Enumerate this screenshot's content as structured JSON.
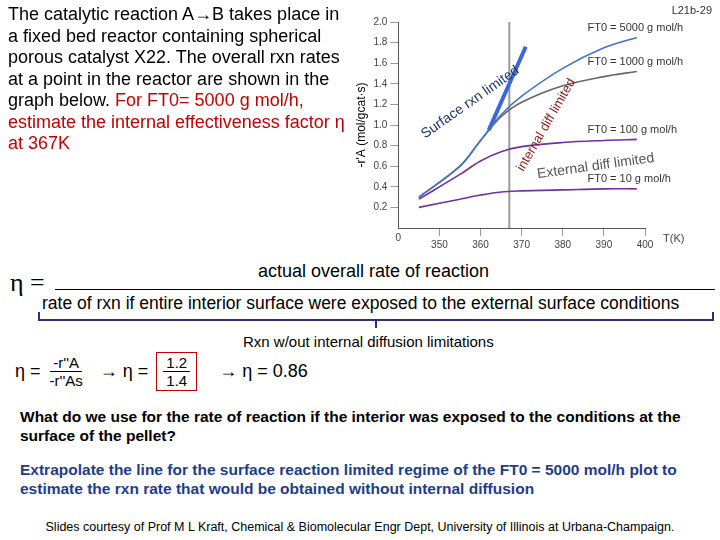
{
  "slide": {
    "page_id": "L21b-29",
    "intro": "The catalytic reaction A→B takes place in a fixed bed reactor containing spherical porous catalyst X22. The overall rxn rates at a point in the reactor are shown in the graph below.",
    "task": "For FT0= 5000 g mol/h, estimate the internal effectiveness factor η at 367K",
    "eta_symbol": "η =",
    "numerator": "actual overall rate of reaction",
    "denominator": "rate of rxn if entire interior surface were exposed to the external surface conditions",
    "bracket_label": "Rxn w/out internal diffusion limitations",
    "formula": {
      "lhs": "η =",
      "num": "-r''A",
      "den": "-r''As",
      "arrow1": "→ η =",
      "value_num": 1.2,
      "value_den": 1.4,
      "arrow2": "→ η =",
      "result": 0.86
    },
    "question": "What do we use for the rate of reaction if the interior was exposed to the conditions at the surface of the pellet?",
    "answer": "Extrapolate the line for the surface reaction limited regime of the FT0 = 5000 mol/h plot to estimate the rxn rate that would be obtained without internal diffusion",
    "footer": "Slides courtesy of Prof M L Kraft, Chemical & Biomolecular Engr Dept, University of Illinois at Urbana-Champaign."
  },
  "chart_data": {
    "type": "line",
    "y_label": "-r'A (mol/gcat·s)",
    "x_label": "T(K)",
    "x_start_label": "0",
    "xlim": [
      340,
      400
    ],
    "xticks": [
      350,
      360,
      370,
      380,
      390,
      400
    ],
    "ylim": [
      0,
      2
    ],
    "yticks": [
      0.2,
      0.4,
      0.6,
      0.8,
      {
        "value": 1,
        "label": "1.0"
      },
      1.2,
      1.4,
      1.6,
      1.8,
      {
        "value": 2,
        "label": "2.0"
      }
    ],
    "grid": false,
    "x": [
      345,
      355,
      360,
      365,
      370,
      380,
      390,
      398
    ],
    "series": [
      {
        "name": "FT0 = 5000 g mol/h",
        "color": "#4472c4",
        "values": [
          0.3,
          0.6,
          0.85,
          1.1,
          1.28,
          1.55,
          1.75,
          1.85
        ]
      },
      {
        "name": "FT0 = 1000 g mol/h",
        "color": "#666666",
        "values": [
          0.3,
          0.6,
          0.85,
          1.08,
          1.22,
          1.38,
          1.47,
          1.52
        ]
      },
      {
        "name": "FT0 = 100 g mol/h",
        "color": "#7030a0",
        "values": [
          0.28,
          0.52,
          0.65,
          0.74,
          0.79,
          0.83,
          0.85,
          0.86
        ]
      },
      {
        "name": "FT0 = 10 g mol/h",
        "color": "#7030a0",
        "values": [
          0.2,
          0.28,
          0.32,
          0.35,
          0.36,
          0.37,
          0.38,
          0.38
        ]
      }
    ],
    "extrapolation": {
      "x": [
        362,
        367,
        371
      ],
      "values": [
        0.95,
        1.4,
        1.76
      ],
      "color": "#3d66d6"
    },
    "reference_x": 367,
    "region_labels": [
      "Surface rxn limited",
      "internal diff limited",
      "External diff limited"
    ]
  }
}
